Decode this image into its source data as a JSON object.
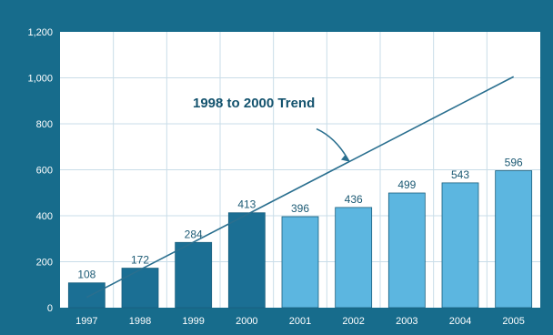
{
  "chart_data": {
    "type": "bar",
    "categories": [
      "1997",
      "1998",
      "1999",
      "2000",
      "2001",
      "2002",
      "2003",
      "2004",
      "2005"
    ],
    "values": [
      108,
      172,
      284,
      413,
      396,
      436,
      499,
      543,
      596
    ],
    "data_labels": [
      "108",
      "172",
      "284",
      "413",
      "396",
      "436",
      "499",
      "543",
      "596"
    ],
    "y_ticks": [
      "0",
      "200",
      "400",
      "600",
      "800",
      "1,000",
      "1,200"
    ],
    "y_tick_values": [
      0,
      200,
      400,
      600,
      800,
      1000,
      1200
    ],
    "ylim": [
      0,
      1200
    ],
    "title": "",
    "xlabel": "",
    "ylabel": "",
    "grid": true,
    "legend": "none",
    "bar_colors": {
      "1997-2000": "#1b6f94",
      "2001-2005": "#5cb6e0"
    },
    "trend_line": {
      "label": "1998 to 2000 Trend",
      "from": {
        "x": "1997",
        "y": 45
      },
      "to": {
        "x": "2005",
        "y": 1005
      }
    },
    "colors": {
      "background": "#176c8c",
      "plot_area": "#ffffff",
      "gridline": "#c9dde8",
      "dark_bar": "#1b6f94",
      "light_bar": "#5cb6e0",
      "trend_line": "#2a6f8f"
    }
  }
}
